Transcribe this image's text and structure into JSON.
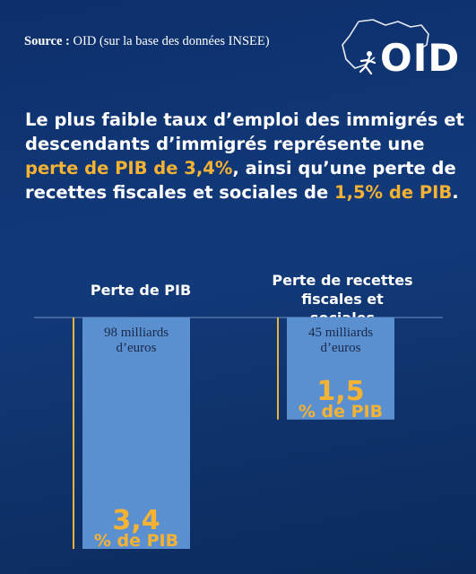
{
  "source": {
    "label": "Source :",
    "text": " OID (sur la base des données INSEE)"
  },
  "logo": {
    "text": "OID"
  },
  "headline": {
    "part1": "Le plus faible taux d’emploi des immigrés et descendants d’immigrés représente une ",
    "highlight1": "perte de PIB de 3,4%",
    "part2": ", ainsi qu’une perte de recettes fiscales et sociales de ",
    "highlight2": "1,5% de PIB",
    "part3": "."
  },
  "colors": {
    "background": "#0d2f6b",
    "bar": "#5a8fd0",
    "accent": "#f5b233",
    "axis_line": "#e8b53a",
    "bar_text": "#1b2a4a"
  },
  "chart_data": {
    "type": "bar",
    "orientation": "vertical-downward",
    "categories": [
      "Perte de PIB",
      "Perte de recettes fiscales et sociales"
    ],
    "values": [
      3.4,
      1.5
    ],
    "unit": "% de PIB",
    "value_labels": [
      "3,4",
      "1,5"
    ],
    "amount_labels": [
      "98 milliards d’euros",
      "45 milliards d’euros"
    ],
    "title": "",
    "xlabel": "",
    "ylabel": "",
    "ylim": [
      0,
      3.4
    ],
    "grid": false,
    "legend": "none"
  }
}
